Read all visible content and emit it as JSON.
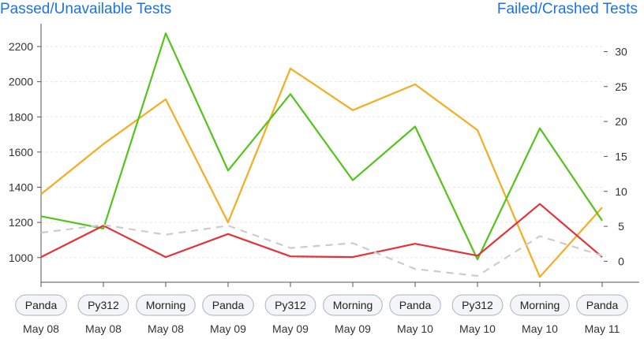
{
  "chart_data": {
    "type": "line",
    "left_axis_title": "Passed/Unavailable Tests",
    "right_axis_title": "Failed/Crashed Tests",
    "categories": [
      {
        "tag": "Panda",
        "date": "May 08"
      },
      {
        "tag": "Py312",
        "date": "May 08"
      },
      {
        "tag": "Morning",
        "date": "May 08"
      },
      {
        "tag": "Panda",
        "date": "May 09"
      },
      {
        "tag": "Py312",
        "date": "May 09"
      },
      {
        "tag": "Morning",
        "date": "May 09"
      },
      {
        "tag": "Panda",
        "date": "May 10"
      },
      {
        "tag": "Py312",
        "date": "May 10"
      },
      {
        "tag": "Morning",
        "date": "May 10"
      },
      {
        "tag": "Panda",
        "date": "May 11"
      }
    ],
    "left_axis": {
      "ylim": [
        860,
        2330
      ],
      "ticks": [
        "1000",
        "1200",
        "1400",
        "1600",
        "1800",
        "2000",
        "2200"
      ]
    },
    "right_axis": {
      "ylim": [
        -3,
        34
      ],
      "ticks": [
        "0",
        "5",
        "10",
        "15",
        "20",
        "25",
        "30"
      ]
    },
    "grid": true,
    "series": [
      {
        "axis": "left",
        "color": "#f5ac1f",
        "style": "solid",
        "values": [
          1360,
          1645,
          1900,
          1200,
          2075,
          1838,
          1985,
          1725,
          890,
          1285
        ]
      },
      {
        "axis": "left",
        "color": "#52c41a",
        "style": "solid",
        "values": [
          1235,
          1165,
          2275,
          1495,
          1930,
          1440,
          1745,
          990,
          1735,
          1210
        ]
      },
      {
        "axis": "right",
        "color": "#e53238",
        "style": "solid",
        "values": [
          0.6,
          5.1,
          0.6,
          3.9,
          0.7,
          0.6,
          2.5,
          0.8,
          8.2,
          0.6
        ]
      },
      {
        "axis": "right",
        "color": "#cccccc",
        "style": "dashed",
        "values": [
          4.1,
          5.2,
          3.8,
          5.1,
          1.9,
          2.6,
          -1.1,
          -2.1,
          3.6,
          0.8
        ]
      }
    ]
  }
}
